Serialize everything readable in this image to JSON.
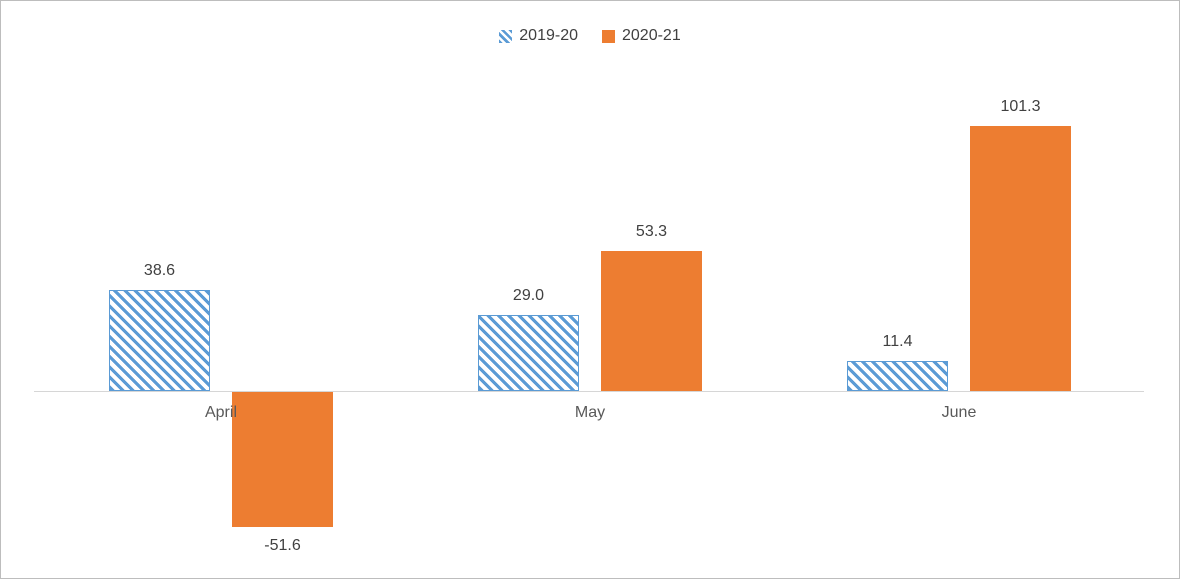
{
  "legend": {
    "items": [
      {
        "label": "2019-20",
        "swatch": "hatched-blue"
      },
      {
        "label": "2020-21",
        "swatch": "solid-orange"
      }
    ],
    "position": "top-center"
  },
  "colors": {
    "series_2019_20": "#5B9BD5",
    "series_2020_21": "#ED7D31",
    "axis_line": "#D6D6D6",
    "data_label_text": "#404040",
    "category_text": "#595959",
    "frame_border": "#BDBDBD",
    "background": "#FFFFFF"
  },
  "chart_data": {
    "type": "bar",
    "categories": [
      "April",
      "May",
      "June"
    ],
    "series": [
      {
        "name": "2019-20",
        "style": "hatched-blue",
        "values": [
          38.6,
          29.0,
          11.4
        ],
        "labels": [
          "38.6",
          "29.0",
          "11.4"
        ]
      },
      {
        "name": "2020-21",
        "style": "solid-orange",
        "values": [
          -51.6,
          53.3,
          101.3
        ],
        "labels": [
          "-51.6",
          "53.3",
          "101.3"
        ]
      }
    ],
    "title": "",
    "xlabel": "",
    "ylabel": "",
    "ylim": [
      -65,
      115
    ],
    "y_axis_visible": false,
    "x_axis_line_visible": true,
    "grid": false,
    "data_labels": true,
    "legend_position": "top"
  }
}
